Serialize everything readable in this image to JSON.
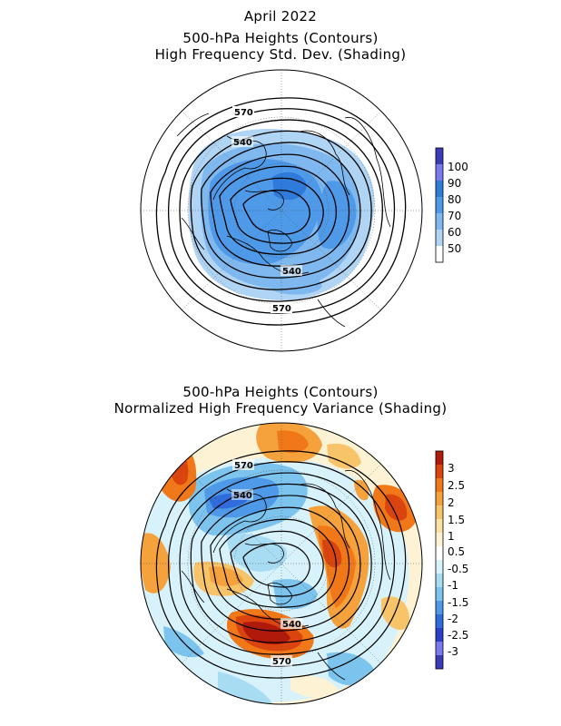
{
  "top_panel": {
    "title_lines": [
      "April 2022",
      "500-hPa Heights (Contours)",
      "High Frequency Std. Dev. (Shading)"
    ],
    "contour_labels": [
      "570",
      "540",
      "540",
      "570"
    ],
    "colorbar": {
      "labels": [
        "100",
        "90",
        "80",
        "70",
        "60",
        "50"
      ],
      "colors": [
        "#3b3bb8",
        "#7a7af0",
        "#2f7bdc",
        "#4f9ae8",
        "#7fb8ee",
        "#b0d4f4",
        "#d9ebfb",
        "#ffffff"
      ]
    }
  },
  "bottom_panel": {
    "title_lines": [
      "500-hPa Heights (Contours)",
      "Normalized High Frequency Variance (Shading)"
    ],
    "contour_labels": [
      "570",
      "540",
      "540",
      "570"
    ],
    "colorbar": {
      "labels": [
        "3",
        "2.5",
        "2",
        "1.5",
        "1",
        "0.5",
        "-0.5",
        "-1",
        "-1.5",
        "-2",
        "-2.5",
        "-3"
      ],
      "colors": [
        "#b01a0a",
        "#d9440f",
        "#f07818",
        "#f5a23c",
        "#f8c46a",
        "#fbe1a2",
        "#fdf3d4",
        "#ffffff",
        "#d8f2fb",
        "#a8dcf3",
        "#7cc3ee",
        "#4f9ae8",
        "#2f6cdc",
        "#2a40c8",
        "#7a7af0",
        "#3b3bb8"
      ]
    }
  }
}
